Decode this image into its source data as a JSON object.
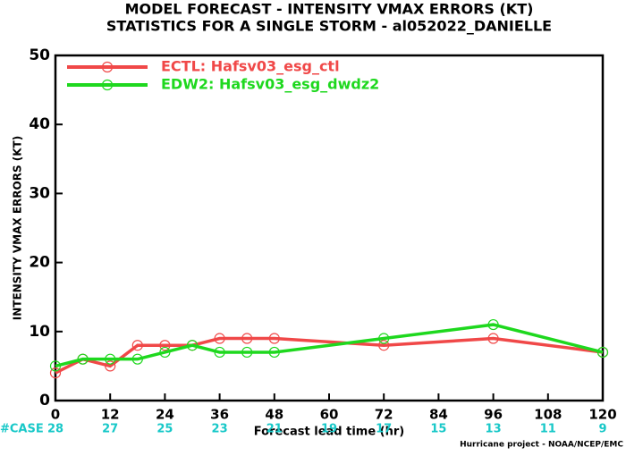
{
  "chart_data": {
    "type": "line",
    "title": "MODEL FORECAST - INTENSITY VMAX ERRORS (KT)",
    "subtitle": "STATISTICS FOR A SINGLE STORM - al052022_DANIELLE",
    "x_label": "Forecast lead time (hr)",
    "y_label": "INTENSITY VMAX ERRORS (KT)",
    "credit": "Hurricane project - NOAA/NCEP/EMC",
    "x": [
      0,
      6,
      12,
      18,
      24,
      30,
      36,
      42,
      48,
      72,
      96,
      120
    ],
    "series": [
      {
        "name": "ECTL: Hafsv03_esg_ctl",
        "color": "#f04848",
        "values": [
          4,
          6,
          5,
          8,
          8,
          8,
          9,
          9,
          9,
          8,
          9,
          7
        ]
      },
      {
        "name": "EDW2: Hafsv03_esg_dwdz2",
        "color": "#1ed81e",
        "values": [
          5,
          6,
          6,
          6,
          7,
          8,
          7,
          7,
          7,
          9,
          11,
          7
        ]
      }
    ],
    "xlim": [
      0,
      120
    ],
    "xticks": [
      0,
      12,
      24,
      36,
      48,
      60,
      72,
      84,
      96,
      108,
      120
    ],
    "ylim": [
      0,
      50
    ],
    "yticks": [
      0,
      10,
      20,
      30,
      40,
      50
    ],
    "case_counts": {
      "label": "#CASE",
      "color": "#18c8c8",
      "values": [
        28,
        27,
        25,
        23,
        21,
        19,
        17,
        15,
        13,
        11,
        9
      ]
    },
    "legend": "upper left"
  }
}
